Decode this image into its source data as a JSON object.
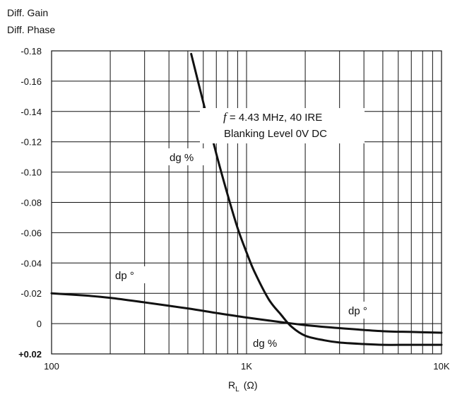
{
  "chart_data": {
    "type": "line",
    "ylabel_lines": [
      "Diff. Gain",
      "Diff. Phase"
    ],
    "xlabel_main": "R",
    "xlabel_sub": "L",
    "xlabel_unit": "(Ω)",
    "x_scale": "log",
    "xlim": [
      100,
      10000
    ],
    "ylim": [
      0.02,
      -0.18
    ],
    "y_reversed": true,
    "grid": true,
    "x_ticks": [
      {
        "value": 100,
        "label": "100"
      },
      {
        "value": 1000,
        "label": "1K"
      },
      {
        "value": 10000,
        "label": "10K"
      }
    ],
    "y_ticks": [
      {
        "value": -0.18,
        "label": "-0.18"
      },
      {
        "value": -0.16,
        "label": "-0.16"
      },
      {
        "value": -0.14,
        "label": "-0.14"
      },
      {
        "value": -0.12,
        "label": "-0.12"
      },
      {
        "value": -0.1,
        "label": "-0.10"
      },
      {
        "value": -0.08,
        "label": "-0.08"
      },
      {
        "value": -0.06,
        "label": "-0.06"
      },
      {
        "value": -0.04,
        "label": "-0.04"
      },
      {
        "value": -0.02,
        "label": "-0.02"
      },
      {
        "value": 0,
        "label": "0"
      },
      {
        "value": 0.02,
        "label": "+0.02"
      }
    ],
    "series": [
      {
        "name": "dg %",
        "x": [
          520,
          600,
          700,
          800,
          900,
          1000,
          1100,
          1300,
          1500,
          1700,
          2000,
          2500,
          3000,
          4000,
          5000,
          7000,
          10000
        ],
        "y": [
          -0.178,
          -0.146,
          -0.112,
          -0.085,
          -0.063,
          -0.047,
          -0.034,
          -0.016,
          -0.006,
          0.002,
          0.008,
          0.011,
          0.0125,
          0.0135,
          0.014,
          0.014,
          0.014
        ]
      },
      {
        "name": "dp °",
        "x": [
          100,
          150,
          200,
          300,
          500,
          700,
          1000,
          1500,
          2000,
          3000,
          5000,
          7000,
          10000
        ],
        "y": [
          -0.02,
          -0.0185,
          -0.017,
          -0.014,
          -0.01,
          -0.007,
          -0.004,
          -0.001,
          0.001,
          0.003,
          0.005,
          0.0055,
          0.006
        ]
      }
    ],
    "annotations": [
      {
        "id": "condition-line-1",
        "prefix": "f",
        "text": " =  4.43 MHz, 40 IRE"
      },
      {
        "id": "condition-line-2",
        "text": "Blanking Level 0V DC"
      },
      {
        "id": "dg-label-upper",
        "text": "dg %"
      },
      {
        "id": "dg-label-lower",
        "text": "dg %"
      },
      {
        "id": "dp-label-left",
        "text": "dp °"
      },
      {
        "id": "dp-label-right",
        "text": "dp °"
      }
    ]
  }
}
